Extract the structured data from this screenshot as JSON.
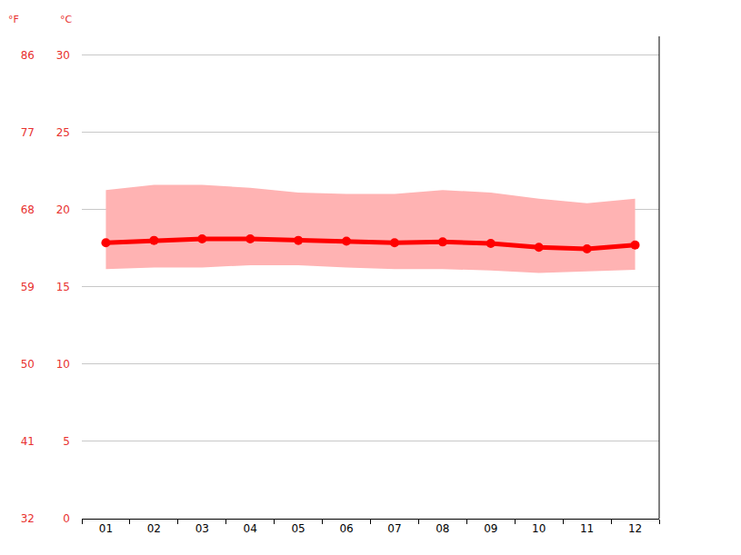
{
  "chart_data": {
    "type": "line",
    "categories": [
      "01",
      "02",
      "03",
      "04",
      "05",
      "06",
      "07",
      "08",
      "09",
      "10",
      "11",
      "12"
    ],
    "values": [
      17.85,
      18.0,
      18.1,
      18.1,
      18.0,
      17.95,
      17.85,
      17.9,
      17.8,
      17.55,
      17.45,
      17.7
    ],
    "low": [
      16.15,
      16.25,
      16.25,
      16.4,
      16.4,
      16.25,
      16.15,
      16.15,
      16.05,
      15.9,
      16.0,
      16.1
    ],
    "high": [
      21.25,
      21.6,
      21.6,
      21.4,
      21.1,
      21.0,
      21.0,
      21.25,
      21.1,
      20.7,
      20.4,
      20.7
    ],
    "color": "#ff0000",
    "marker": "circle",
    "ylabel": "°C",
    "y2label": "°F",
    "ylim": [
      0,
      31.2
    ],
    "yticks": [
      0,
      5,
      10,
      15,
      20,
      25,
      30
    ],
    "y2lim": [
      32,
      88.16
    ],
    "y2ticks": [
      32,
      41,
      50,
      59,
      68,
      77,
      86
    ],
    "grid": true
  }
}
